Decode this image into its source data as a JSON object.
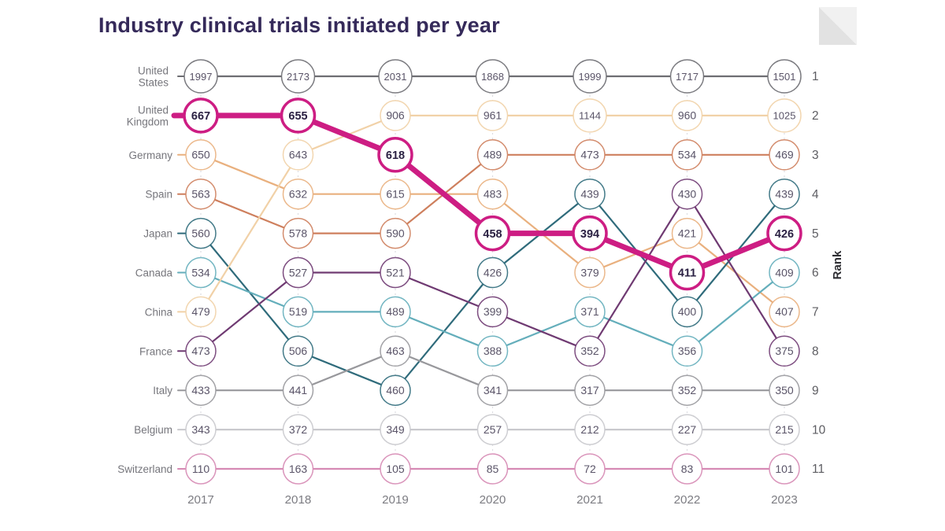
{
  "title": "Industry clinical trials initiated per year",
  "decor": {
    "icon": "folded-corner"
  },
  "chart_data": {
    "type": "line",
    "subtype": "bump-rank-chart",
    "title": "Industry clinical trials initiated per year",
    "x": [
      "2017",
      "2018",
      "2019",
      "2020",
      "2021",
      "2022",
      "2023"
    ],
    "rank_axis_label": "Rank",
    "ranks_shown": [
      1,
      2,
      3,
      4,
      5,
      6,
      7,
      8,
      9,
      10,
      11
    ],
    "grid": "dotted-vertical-guides",
    "legend_position": "left-row-labels",
    "highlight_color": "#cd1d83",
    "series": [
      {
        "name": "United States",
        "label_lines": [
          "United",
          "States"
        ],
        "color": "#6d6d72",
        "highlight": false,
        "values": [
          1997,
          2173,
          2031,
          1868,
          1999,
          1717,
          1501
        ]
      },
      {
        "name": "United Kingdom",
        "label_lines": [
          "United",
          "Kingdom"
        ],
        "color": "#cd1d83",
        "highlight": true,
        "values": [
          667,
          655,
          618,
          458,
          394,
          411,
          426
        ]
      },
      {
        "name": "Germany",
        "label_lines": [
          "Germany"
        ],
        "color": "#e9b07e",
        "highlight": false,
        "values": [
          650,
          632,
          615,
          483,
          379,
          421,
          407
        ]
      },
      {
        "name": "Spain",
        "label_lines": [
          "Spain"
        ],
        "color": "#ce7f5d",
        "highlight": false,
        "values": [
          563,
          578,
          590,
          489,
          473,
          534,
          469
        ]
      },
      {
        "name": "Japan",
        "label_lines": [
          "Japan"
        ],
        "color": "#2f6b7b",
        "highlight": false,
        "values": [
          560,
          506,
          460,
          426,
          439,
          400,
          439
        ]
      },
      {
        "name": "Canada",
        "label_lines": [
          "Canada"
        ],
        "color": "#64aebb",
        "highlight": false,
        "values": [
          534,
          519,
          489,
          388,
          371,
          356,
          409
        ]
      },
      {
        "name": "China",
        "label_lines": [
          "China"
        ],
        "color": "#f1d1a7",
        "highlight": false,
        "values": [
          479,
          643,
          906,
          961,
          1144,
          960,
          1025
        ]
      },
      {
        "name": "France",
        "label_lines": [
          "France"
        ],
        "color": "#6f3a72",
        "highlight": false,
        "values": [
          473,
          527,
          521,
          399,
          352,
          430,
          375
        ]
      },
      {
        "name": "Italy",
        "label_lines": [
          "Italy"
        ],
        "color": "#98989c",
        "highlight": false,
        "values": [
          433,
          441,
          463,
          341,
          317,
          352,
          350
        ]
      },
      {
        "name": "Belgium",
        "label_lines": [
          "Belgium"
        ],
        "color": "#c9c9cd",
        "highlight": false,
        "values": [
          343,
          372,
          349,
          257,
          212,
          227,
          215
        ]
      },
      {
        "name": "Switzerland",
        "label_lines": [
          "Switzerland"
        ],
        "color": "#d68ab4",
        "highlight": false,
        "values": [
          110,
          163,
          105,
          85,
          72,
          83,
          101
        ]
      }
    ]
  }
}
